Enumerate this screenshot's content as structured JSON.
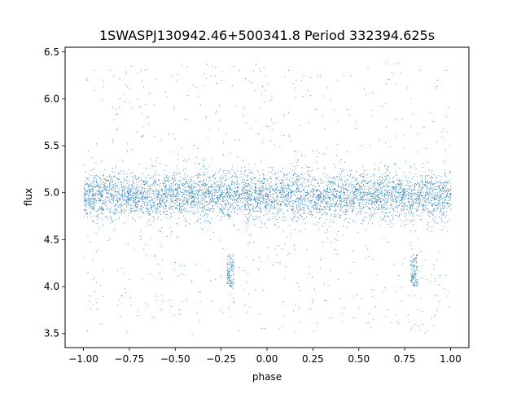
{
  "chart_data": {
    "type": "scatter",
    "title": "1SWASPJ130942.46+500341.8 Period 332394.625s",
    "xlabel": "phase",
    "ylabel": "flux",
    "xlim": [
      -1.1,
      1.1
    ],
    "ylim": [
      3.35,
      6.55
    ],
    "xticks": [
      -1.0,
      -0.75,
      -0.5,
      -0.25,
      0.0,
      0.25,
      0.5,
      0.75,
      1.0
    ],
    "xtick_labels": [
      "−1.00",
      "−0.75",
      "−0.50",
      "−0.25",
      "0.00",
      "0.25",
      "0.50",
      "0.75",
      "1.00"
    ],
    "yticks": [
      3.5,
      4.0,
      4.5,
      5.0,
      5.5,
      6.0,
      6.5
    ],
    "ytick_labels": [
      "3.5",
      "4.0",
      "4.5",
      "5.0",
      "5.5",
      "6.0",
      "6.5"
    ],
    "grid": false,
    "marker_color": "#1f77b4",
    "series": [
      {
        "description_of_distribution": "",
        "x_range": [
          -1.0,
          1.0
        ],
        "bulk_flux_center": 4.97,
        "bulk_flux_spread": 0.22,
        "dip_clusters": [
          {
            "phase_range": [
              -0.22,
              -0.18
            ],
            "flux_range": [
              4.0,
              4.35
            ]
          },
          {
            "phase_range": [
              0.78,
              0.82
            ],
            "flux_range": [
              4.0,
              4.35
            ]
          }
        ],
        "sample_points": [
          [
            -1.0,
            4.98
          ],
          [
            -0.95,
            5.05
          ],
          [
            -0.9,
            4.88
          ],
          [
            -0.85,
            5.12
          ],
          [
            -0.8,
            4.95
          ],
          [
            -0.75,
            5.02
          ],
          [
            -0.7,
            4.91
          ],
          [
            -0.65,
            5.07
          ],
          [
            -0.6,
            4.97
          ],
          [
            -0.55,
            4.86
          ],
          [
            -0.5,
            5.04
          ],
          [
            -0.45,
            4.99
          ],
          [
            -0.4,
            4.93
          ],
          [
            -0.35,
            5.09
          ],
          [
            -0.3,
            4.96
          ],
          [
            -0.25,
            5.01
          ],
          [
            -0.2,
            4.12
          ],
          [
            -0.15,
            4.94
          ],
          [
            -0.1,
            5.03
          ],
          [
            -0.05,
            4.9
          ],
          [
            0.0,
            4.98
          ],
          [
            0.05,
            5.05
          ],
          [
            0.1,
            4.88
          ],
          [
            0.15,
            5.12
          ],
          [
            0.2,
            4.95
          ],
          [
            0.25,
            5.02
          ],
          [
            0.3,
            4.91
          ],
          [
            0.35,
            5.07
          ],
          [
            0.4,
            4.97
          ],
          [
            0.45,
            4.86
          ],
          [
            0.5,
            5.04
          ],
          [
            0.55,
            4.99
          ],
          [
            0.6,
            4.93
          ],
          [
            0.65,
            5.09
          ],
          [
            0.7,
            4.96
          ],
          [
            0.75,
            5.01
          ],
          [
            0.8,
            4.12
          ],
          [
            0.85,
            4.94
          ],
          [
            0.9,
            5.03
          ],
          [
            0.95,
            4.9
          ],
          [
            1.0,
            4.98
          ]
        ]
      }
    ]
  }
}
